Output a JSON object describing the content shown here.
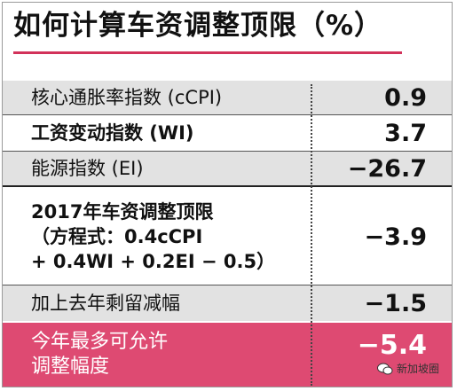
{
  "title": "如何计算车资调整顶限（%）",
  "rows": [
    {
      "label": "核心通胀率指数 (cCPI)",
      "value": "0.9"
    },
    {
      "label": "工资变动指数 (WI)",
      "value": "3.7"
    },
    {
      "label": "能源指数 (EI)",
      "value": "−26.7"
    },
    {
      "label_lines": [
        "2017年车资调整顶限",
        "（方程式：0.4cCPI",
        "+ 0.4WI + 0.2EI − 0.5）"
      ],
      "value": "−3.9"
    },
    {
      "label": "加上去年剩留减幅",
      "value": "−1.5"
    },
    {
      "label_lines": [
        "今年最多可允许",
        "调整幅度"
      ],
      "value": "−5.4"
    }
  ],
  "watermark": "新加坡圈",
  "colors": {
    "accent": "#de4a72",
    "rule": "#d2325a",
    "band": "#e2e2e2"
  }
}
